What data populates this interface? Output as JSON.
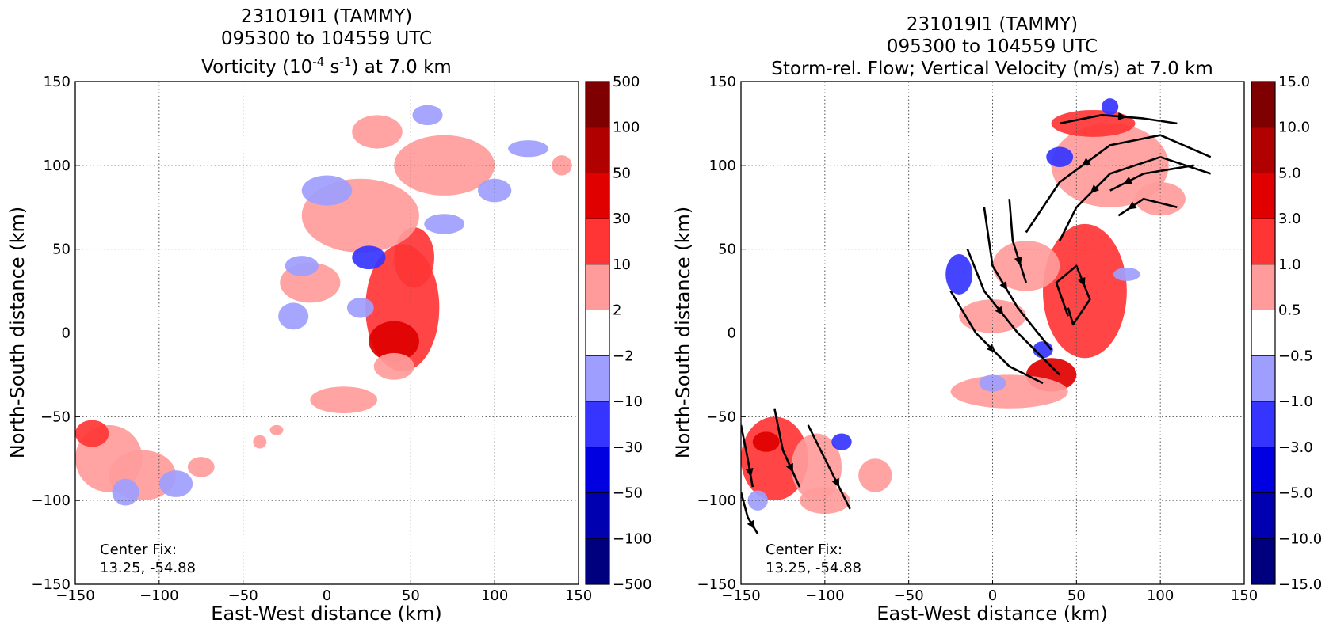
{
  "chart_data": [
    {
      "type": "heatmap",
      "title_lines": [
        "231019I1 (TAMMY)",
        "095300 to 104559 UTC"
      ],
      "title_field": {
        "pre": "Vorticity (10",
        "exp1": "-4",
        "mid": " s",
        "exp2": "-1",
        "post": ") at 7.0 km"
      },
      "xlabel": "East-West distance (km)",
      "ylabel": "North-South distance (km)",
      "xlim": [
        -150,
        150
      ],
      "ylim": [
        -150,
        150
      ],
      "xticks": [
        -150,
        -100,
        -50,
        0,
        50,
        100,
        150
      ],
      "yticks": [
        -150,
        -100,
        -50,
        0,
        50,
        100,
        150
      ],
      "grid": true,
      "annotation": [
        "Center Fix:",
        "13.25, -54.88"
      ],
      "colorbar": {
        "labels": [
          "500",
          "100",
          "50",
          "30",
          "10",
          "2",
          "−2",
          "−10",
          "−30",
          "−50",
          "−100",
          "−500"
        ],
        "colors": [
          "#7f0000",
          "#b00000",
          "#e00000",
          "#ff3535",
          "#ff9b9b",
          "#ffffff",
          "#9e9eff",
          "#3535ff",
          "#0000e0",
          "#0000b0",
          "#00007f"
        ]
      },
      "blobs": [
        {
          "x": 45,
          "y": 15,
          "rx": 22,
          "ry": 38,
          "level": 3
        },
        {
          "x": 52,
          "y": 45,
          "rx": 12,
          "ry": 18,
          "level": 3
        },
        {
          "x": 40,
          "y": -5,
          "rx": 15,
          "ry": 12,
          "level": 2
        },
        {
          "x": 20,
          "y": 70,
          "rx": 35,
          "ry": 22,
          "level": 4
        },
        {
          "x": 70,
          "y": 100,
          "rx": 30,
          "ry": 18,
          "level": 4
        },
        {
          "x": -10,
          "y": 30,
          "rx": 18,
          "ry": 12,
          "level": 4
        },
        {
          "x": 30,
          "y": 120,
          "rx": 15,
          "ry": 10,
          "level": 4
        },
        {
          "x": 0,
          "y": 85,
          "rx": 15,
          "ry": 9,
          "level": 6
        },
        {
          "x": 25,
          "y": 45,
          "rx": 10,
          "ry": 7,
          "level": 7
        },
        {
          "x": 70,
          "y": 65,
          "rx": 12,
          "ry": 6,
          "level": 6
        },
        {
          "x": 100,
          "y": 85,
          "rx": 10,
          "ry": 7,
          "level": 6
        },
        {
          "x": 20,
          "y": 15,
          "rx": 8,
          "ry": 6,
          "level": 6
        },
        {
          "x": -20,
          "y": 10,
          "rx": 9,
          "ry": 8,
          "level": 6
        },
        {
          "x": 60,
          "y": 130,
          "rx": 9,
          "ry": 6,
          "level": 6
        },
        {
          "x": 120,
          "y": 110,
          "rx": 12,
          "ry": 5,
          "level": 6
        },
        {
          "x": -15,
          "y": 40,
          "rx": 10,
          "ry": 6,
          "level": 6
        },
        {
          "x": 10,
          "y": -40,
          "rx": 20,
          "ry": 8,
          "level": 4
        },
        {
          "x": 40,
          "y": -20,
          "rx": 12,
          "ry": 8,
          "level": 4
        },
        {
          "x": 140,
          "y": 100,
          "rx": 6,
          "ry": 6,
          "level": 4
        },
        {
          "x": -130,
          "y": -75,
          "rx": 20,
          "ry": 20,
          "level": 4
        },
        {
          "x": -110,
          "y": -85,
          "rx": 20,
          "ry": 15,
          "level": 4
        },
        {
          "x": -140,
          "y": -60,
          "rx": 10,
          "ry": 8,
          "level": 3
        },
        {
          "x": -120,
          "y": -95,
          "rx": 8,
          "ry": 8,
          "level": 6
        },
        {
          "x": -90,
          "y": -90,
          "rx": 10,
          "ry": 8,
          "level": 6
        },
        {
          "x": -75,
          "y": -80,
          "rx": 8,
          "ry": 6,
          "level": 4
        },
        {
          "x": -40,
          "y": -65,
          "rx": 4,
          "ry": 4,
          "level": 4
        },
        {
          "x": -30,
          "y": -58,
          "rx": 4,
          "ry": 3,
          "level": 4
        }
      ]
    },
    {
      "type": "heatmap",
      "title_lines": [
        "231019I1 (TAMMY)",
        "095300 to 104559 UTC",
        "Storm-rel. Flow; Vertical Velocity (m/s) at 7.0 km"
      ],
      "xlabel": "East-West distance (km)",
      "ylabel": "North-South distance (km)",
      "xlim": [
        -150,
        150
      ],
      "ylim": [
        -150,
        150
      ],
      "xticks": [
        -150,
        -100,
        -50,
        0,
        50,
        100,
        150
      ],
      "yticks": [
        -150,
        -100,
        -50,
        0,
        50,
        100,
        150
      ],
      "grid": true,
      "annotation": [
        "Center Fix:",
        "13.25, -54.88"
      ],
      "colorbar": {
        "labels": [
          "15.0",
          "10.0",
          "5.0",
          "3.0",
          "1.0",
          "0.5",
          "−0.5",
          "−1.0",
          "−3.0",
          "−5.0",
          "−10.0",
          "−15.0"
        ],
        "colors": [
          "#7f0000",
          "#b00000",
          "#e00000",
          "#ff3535",
          "#ff9b9b",
          "#ffffff",
          "#9e9eff",
          "#3535ff",
          "#0000e0",
          "#0000b0",
          "#00007f"
        ]
      },
      "blobs": [
        {
          "x": 55,
          "y": 25,
          "rx": 25,
          "ry": 40,
          "level": 3
        },
        {
          "x": 35,
          "y": -25,
          "rx": 15,
          "ry": 10,
          "level": 2
        },
        {
          "x": 20,
          "y": 40,
          "rx": 20,
          "ry": 15,
          "level": 4
        },
        {
          "x": 70,
          "y": 100,
          "rx": 35,
          "ry": 25,
          "level": 4
        },
        {
          "x": 60,
          "y": 125,
          "rx": 25,
          "ry": 8,
          "level": 3
        },
        {
          "x": 100,
          "y": 80,
          "rx": 15,
          "ry": 10,
          "level": 4
        },
        {
          "x": 0,
          "y": 10,
          "rx": 20,
          "ry": 10,
          "level": 4
        },
        {
          "x": 10,
          "y": -35,
          "rx": 35,
          "ry": 10,
          "level": 4
        },
        {
          "x": -20,
          "y": 35,
          "rx": 8,
          "ry": 12,
          "level": 7
        },
        {
          "x": 40,
          "y": 105,
          "rx": 8,
          "ry": 6,
          "level": 7
        },
        {
          "x": 30,
          "y": -10,
          "rx": 6,
          "ry": 5,
          "level": 7
        },
        {
          "x": 0,
          "y": -30,
          "rx": 8,
          "ry": 5,
          "level": 6
        },
        {
          "x": 70,
          "y": 135,
          "rx": 5,
          "ry": 5,
          "level": 7
        },
        {
          "x": 80,
          "y": 35,
          "rx": 8,
          "ry": 4,
          "level": 6
        },
        {
          "x": -130,
          "y": -75,
          "rx": 20,
          "ry": 25,
          "level": 3
        },
        {
          "x": -105,
          "y": -80,
          "rx": 15,
          "ry": 20,
          "level": 4
        },
        {
          "x": -135,
          "y": -65,
          "rx": 8,
          "ry": 6,
          "level": 2
        },
        {
          "x": -100,
          "y": -100,
          "rx": 15,
          "ry": 8,
          "level": 4
        },
        {
          "x": -90,
          "y": -65,
          "rx": 6,
          "ry": 5,
          "level": 7
        },
        {
          "x": -140,
          "y": -100,
          "rx": 6,
          "ry": 6,
          "level": 6
        },
        {
          "x": -70,
          "y": -85,
          "rx": 10,
          "ry": 10,
          "level": 4
        }
      ],
      "streamlines": [
        [
          [
            -150,
            -55
          ],
          [
            -146,
            -75
          ],
          [
            -143,
            -92
          ]
        ],
        [
          [
            -150,
            -95
          ],
          [
            -146,
            -110
          ],
          [
            -140,
            -120
          ]
        ],
        [
          [
            -130,
            -45
          ],
          [
            -125,
            -70
          ],
          [
            -115,
            -92
          ]
        ],
        [
          [
            -110,
            -55
          ],
          [
            -100,
            -75
          ],
          [
            -85,
            -105
          ]
        ],
        [
          [
            -25,
            25
          ],
          [
            -10,
            0
          ],
          [
            10,
            -20
          ],
          [
            30,
            -30
          ]
        ],
        [
          [
            -15,
            50
          ],
          [
            -5,
            25
          ],
          [
            15,
            0
          ],
          [
            40,
            -25
          ]
        ],
        [
          [
            -5,
            75
          ],
          [
            0,
            40
          ],
          [
            15,
            15
          ],
          [
            35,
            -10
          ]
        ],
        [
          [
            10,
            80
          ],
          [
            12,
            55
          ],
          [
            20,
            30
          ]
        ],
        [
          [
            45,
            10
          ],
          [
            38,
            30
          ],
          [
            50,
            40
          ],
          [
            58,
            20
          ],
          [
            48,
            5
          ],
          [
            45,
            15
          ]
        ],
        [
          [
            40,
            125
          ],
          [
            65,
            130
          ],
          [
            90,
            128
          ],
          [
            110,
            125
          ]
        ],
        [
          [
            130,
            105
          ],
          [
            100,
            118
          ],
          [
            70,
            112
          ],
          [
            40,
            90
          ],
          [
            20,
            60
          ]
        ],
        [
          [
            130,
            95
          ],
          [
            100,
            105
          ],
          [
            70,
            95
          ],
          [
            50,
            75
          ],
          [
            40,
            55
          ]
        ],
        [
          [
            120,
            100
          ],
          [
            90,
            95
          ],
          [
            70,
            85
          ]
        ],
        [
          [
            110,
            75
          ],
          [
            90,
            80
          ],
          [
            75,
            70
          ]
        ]
      ]
    }
  ]
}
